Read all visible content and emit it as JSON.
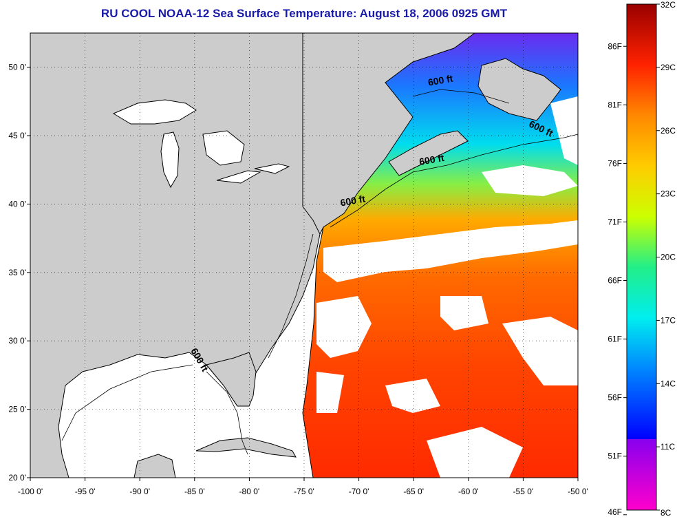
{
  "title": "RU COOL  NOAA-12  Sea Surface Temperature:  August 18, 2006 0925 GMT",
  "map": {
    "lon_range": [
      -100,
      -50
    ],
    "lat_range": [
      20,
      52.5
    ],
    "x_ticks": [
      {
        "value": -100,
        "label": "-100 0'"
      },
      {
        "value": -95,
        "label": "-95 0'"
      },
      {
        "value": -90,
        "label": "-90 0'"
      },
      {
        "value": -85,
        "label": "-85 0'"
      },
      {
        "value": -80,
        "label": "-80 0'"
      },
      {
        "value": -75,
        "label": "-75 0'"
      },
      {
        "value": -70,
        "label": "-70 0'"
      },
      {
        "value": -65,
        "label": "-65 0'"
      },
      {
        "value": -60,
        "label": "-60 0'"
      },
      {
        "value": -55,
        "label": "-55 0'"
      },
      {
        "value": -50,
        "label": "-50 0'"
      }
    ],
    "y_ticks": [
      {
        "value": 20,
        "label": "20 0'"
      },
      {
        "value": 25,
        "label": "25 0'"
      },
      {
        "value": 30,
        "label": "30 0'"
      },
      {
        "value": 35,
        "label": "35 0'"
      },
      {
        "value": 40,
        "label": "40 0'"
      },
      {
        "value": 45,
        "label": "45 0'"
      },
      {
        "value": 50,
        "label": "50 0'"
      }
    ],
    "depth_labels": [
      {
        "text": "600 ft",
        "lon": -62.5,
        "lat": 48.8
      },
      {
        "text": "600 ft",
        "lon": -53.5,
        "lat": 45.3
      },
      {
        "text": "600 ft",
        "lon": -63.3,
        "lat": 43.0
      },
      {
        "text": "600 ft",
        "lon": -70.5,
        "lat": 40.0
      },
      {
        "text": "600 ft",
        "lon": -84.8,
        "lat": 28.5
      }
    ],
    "colors": {
      "land": "#cccccc",
      "cloud": "#ffffff",
      "coast": "#000000"
    }
  },
  "colorbar": {
    "celsius_range": [
      8,
      32
    ],
    "celsius_labels": [
      "32C",
      "29C",
      "26C",
      "23C",
      "20C",
      "17C",
      "14C",
      "11C",
      "8C"
    ],
    "fahrenheit_labels": [
      "86F",
      "81F",
      "76F",
      "71F",
      "66F",
      "61F",
      "56F",
      "51F",
      "46F"
    ],
    "fahrenheit_values": [
      86,
      81,
      76,
      71,
      66,
      61,
      56,
      51,
      46
    ]
  }
}
